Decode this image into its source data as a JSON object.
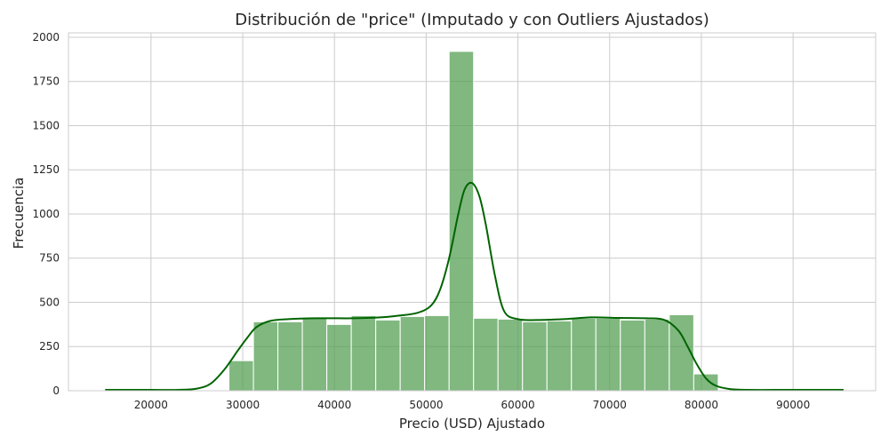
{
  "chart_data": {
    "type": "bar",
    "title": "Distribución de \"price\" (Imputado y con Outliers Ajustados)",
    "xlabel": "Precio (USD) Ajustado",
    "ylabel": "Frecuencia",
    "xlim": [
      11000,
      99000
    ],
    "ylim": [
      0,
      2025
    ],
    "xticks": [
      20000,
      30000,
      40000,
      50000,
      60000,
      70000,
      80000,
      90000
    ],
    "yticks": [
      0,
      250,
      500,
      750,
      1000,
      1250,
      1500,
      1750,
      2000
    ],
    "grid": true,
    "bar_color": "#55a055",
    "bar_edge_color": "#ffffff",
    "kde_color": "#006400",
    "bins": [
      {
        "start": 28500,
        "end": 31167,
        "count": 170
      },
      {
        "start": 31167,
        "end": 33833,
        "count": 390
      },
      {
        "start": 33833,
        "end": 36500,
        "count": 390
      },
      {
        "start": 36500,
        "end": 39167,
        "count": 410
      },
      {
        "start": 39167,
        "end": 41833,
        "count": 375
      },
      {
        "start": 41833,
        "end": 44500,
        "count": 425
      },
      {
        "start": 44500,
        "end": 47167,
        "count": 400
      },
      {
        "start": 47167,
        "end": 49833,
        "count": 420
      },
      {
        "start": 49833,
        "end": 52500,
        "count": 425
      },
      {
        "start": 52500,
        "end": 55167,
        "count": 1920
      },
      {
        "start": 55167,
        "end": 57833,
        "count": 410
      },
      {
        "start": 57833,
        "end": 60500,
        "count": 405
      },
      {
        "start": 60500,
        "end": 63167,
        "count": 390
      },
      {
        "start": 63167,
        "end": 65833,
        "count": 395
      },
      {
        "start": 65833,
        "end": 68500,
        "count": 410
      },
      {
        "start": 68500,
        "end": 71167,
        "count": 410
      },
      {
        "start": 71167,
        "end": 73833,
        "count": 400
      },
      {
        "start": 73833,
        "end": 76500,
        "count": 405
      },
      {
        "start": 76500,
        "end": 79167,
        "count": 430
      },
      {
        "start": 79167,
        "end": 81833,
        "count": 95
      }
    ],
    "kde": {
      "x": [
        15000,
        20000,
        23000,
        25000,
        26500,
        28000,
        29500,
        30500,
        31500,
        33000,
        35000,
        38000,
        42000,
        45000,
        47000,
        49000,
        50500,
        51500,
        52500,
        53500,
        54200,
        55000,
        55800,
        56500,
        57500,
        58500,
        60000,
        62000,
        65000,
        68000,
        71000,
        74000,
        76000,
        77500,
        78500,
        79500,
        80500,
        81500,
        83000,
        85000,
        90000,
        95500
      ],
      "y": [
        5,
        5,
        5,
        12,
        40,
        120,
        230,
        300,
        360,
        395,
        405,
        410,
        410,
        415,
        425,
        440,
        480,
        570,
        750,
        1000,
        1140,
        1175,
        1100,
        940,
        650,
        450,
        405,
        400,
        405,
        415,
        412,
        410,
        400,
        340,
        250,
        150,
        70,
        30,
        10,
        5,
        5,
        5
      ]
    }
  }
}
